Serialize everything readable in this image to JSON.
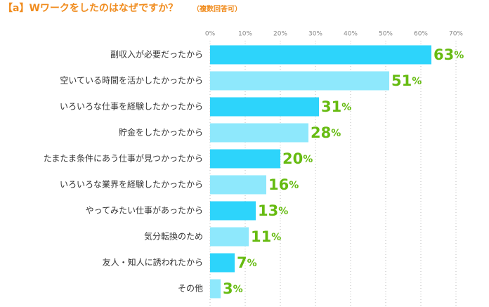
{
  "chart_data": {
    "type": "bar",
    "orientation": "horizontal",
    "title": "【a】Wワークをしたのはなぜですか？",
    "subtitle": "（複数回答可）",
    "categories": [
      "副収入が必要だったから",
      "空いている時間を活かしたかったから",
      "いろいろな仕事を経験したかったから",
      "貯金をしたかったから",
      "たまたま条件にあう仕事が見つかったから",
      "いろいろな業界を経験したかったから",
      "やってみたい仕事があったから",
      "気分転換のため",
      "友人・知人に誘われたから",
      "その他"
    ],
    "values": [
      63,
      51,
      31,
      28,
      20,
      16,
      13,
      11,
      7,
      3
    ],
    "value_labels": [
      "63%",
      "51%",
      "31%",
      "28%",
      "20%",
      "16%",
      "13%",
      "11%",
      "7%",
      "3%"
    ],
    "colors": [
      "#2dd4fb",
      "#8ee8fc",
      "#2dd4fb",
      "#8ee8fc",
      "#2dd4fb",
      "#8ee8fc",
      "#2dd4fb",
      "#8ee8fc",
      "#2dd4fb",
      "#8ee8fc"
    ],
    "xlim": [
      0,
      70
    ],
    "xticks": [
      {
        "value": 0,
        "label": "0%"
      },
      {
        "value": 10,
        "label": "10%"
      },
      {
        "value": 20,
        "label": "20%"
      },
      {
        "value": 30,
        "label": "30%"
      },
      {
        "value": 40,
        "label": "40%"
      },
      {
        "value": 50,
        "label": "50%"
      },
      {
        "value": 60,
        "label": "60%"
      },
      {
        "value": 70,
        "label": "70%"
      }
    ],
    "grid": true
  }
}
